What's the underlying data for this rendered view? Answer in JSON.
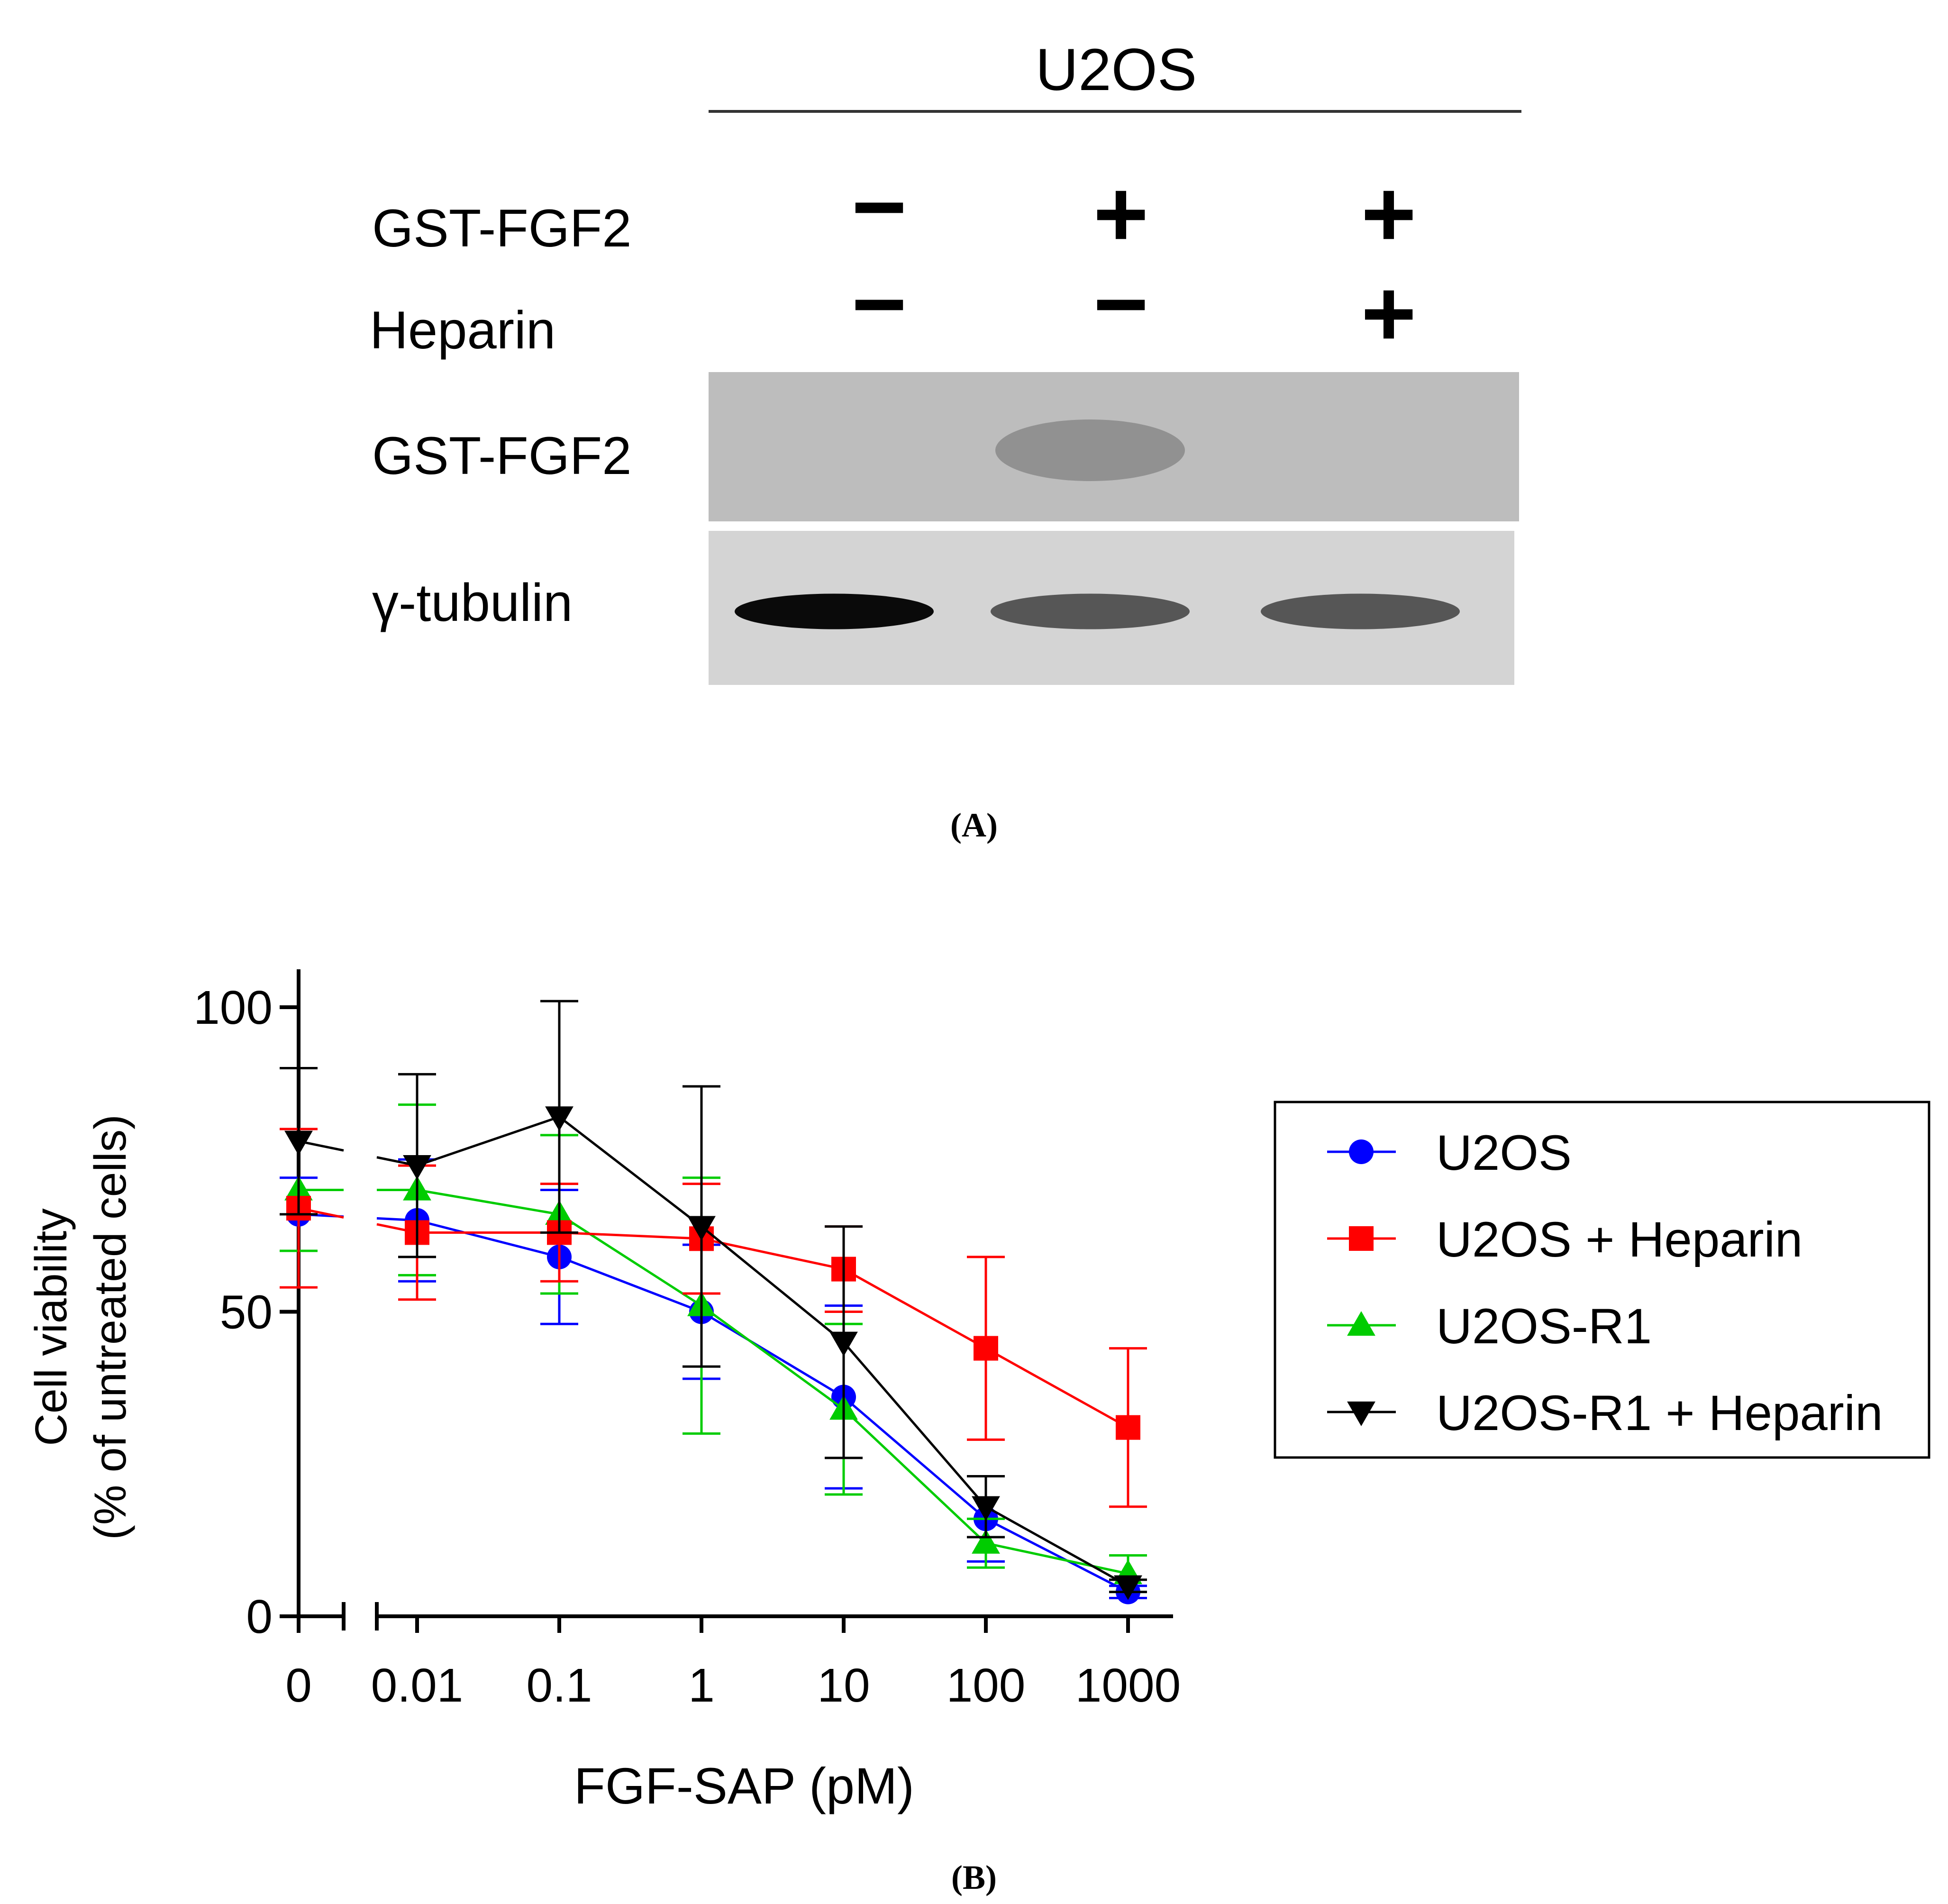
{
  "panel_a": {
    "header": "U2OS",
    "row_labels": [
      "GST-FGF2",
      "Heparin"
    ],
    "lanes": [
      {
        "GST-FGF2": "−",
        "Heparin": "−"
      },
      {
        "GST-FGF2": "+",
        "Heparin": "−"
      },
      {
        "GST-FGF2": "+",
        "Heparin": "+"
      }
    ],
    "blots": [
      {
        "label": "GST-FGF2",
        "band_intensity": [
          0,
          0.35,
          0
        ]
      },
      {
        "label": "γ-tubulin",
        "band_intensity": [
          1.0,
          0.6,
          0.6
        ]
      }
    ],
    "panel_label": "(A)"
  },
  "panel_b": {
    "panel_label": "(B)"
  },
  "chart_data": {
    "type": "line",
    "title": "",
    "xlabel": "FGF-SAP (pM)",
    "ylabel": "Cell viability",
    "ylabel2": "(% of untreated cells)",
    "x_scale": "log (with 0 on a broken axis segment)",
    "categories": [
      "0",
      "0.01",
      "0.1",
      "1",
      "10",
      "100",
      "1000"
    ],
    "x": [
      0,
      0.01,
      0.1,
      1,
      10,
      100,
      1000
    ],
    "ylim": [
      0,
      100
    ],
    "yticks": [
      0,
      50,
      100
    ],
    "grid": false,
    "legend": "right",
    "series": [
      {
        "name": "U2OS",
        "color": "#0000ff",
        "marker": "circle",
        "values": [
          66,
          65,
          59,
          50,
          36,
          16,
          4
        ],
        "error": [
          6,
          10,
          11,
          11,
          15,
          7,
          1
        ]
      },
      {
        "name": "U2OS + Heparin",
        "color": "#ff0000",
        "marker": "square",
        "values": [
          67,
          63,
          63,
          62,
          57,
          44,
          31
        ],
        "error": [
          13,
          11,
          8,
          9,
          7,
          15,
          13
        ]
      },
      {
        "name": "U2OS-R1",
        "color": "#00cc00",
        "marker": "triangle-up",
        "values": [
          70,
          70,
          66,
          51,
          34,
          12,
          7
        ],
        "error": [
          10,
          14,
          13,
          21,
          14,
          4,
          3
        ]
      },
      {
        "name": "U2OS-R1 + Heparin",
        "color": "#000000",
        "marker": "triangle-down",
        "values": [
          78,
          74,
          82,
          64,
          45,
          18,
          5
        ],
        "error": [
          12,
          15,
          19,
          23,
          19,
          5,
          1
        ]
      }
    ]
  }
}
